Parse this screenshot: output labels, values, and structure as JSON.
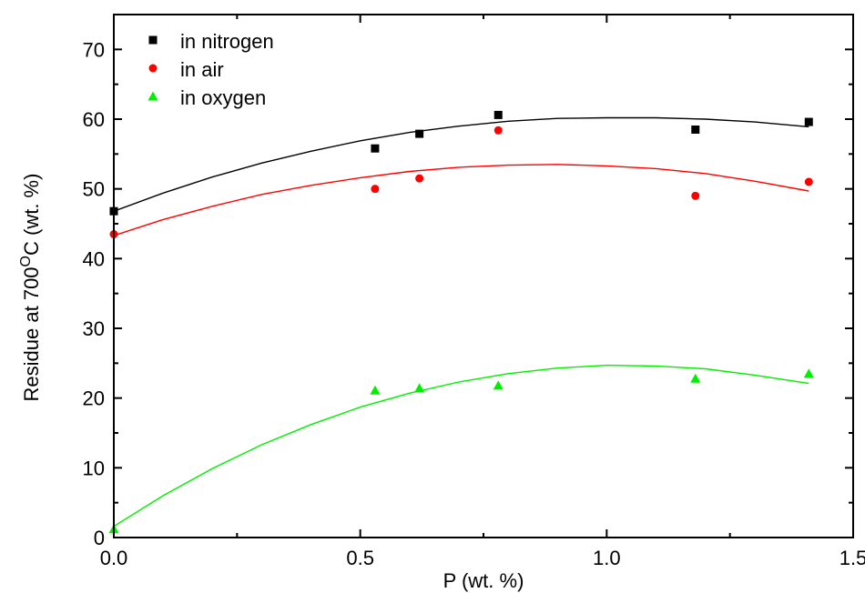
{
  "chart_data": {
    "type": "scatter",
    "xlabel": "P (wt. %)",
    "ylabel": {
      "prefix": "Residue at 700",
      "superscript": "O",
      "suffix": "C (wt. %)"
    },
    "xlim": [
      0.0,
      1.5
    ],
    "ylim": [
      0,
      75
    ],
    "x_ticks": [
      0.0,
      0.5,
      1.0,
      1.5
    ],
    "x_tick_labels": [
      "0.0",
      "0.5",
      "1.0",
      "1.5"
    ],
    "y_ticks": [
      0,
      10,
      20,
      30,
      40,
      50,
      60,
      70
    ],
    "y_tick_labels": [
      "0",
      "10",
      "20",
      "30",
      "40",
      "50",
      "60",
      "70"
    ],
    "legend_position": "top-left",
    "grid": false,
    "series": [
      {
        "name": "in nitrogen",
        "marker": "square",
        "color": "#000000",
        "x": [
          0.0,
          0.53,
          0.62,
          0.78,
          1.18,
          1.41
        ],
        "y": [
          46.8,
          55.8,
          57.9,
          60.6,
          58.5,
          59.6
        ],
        "fit_x": [
          0.0,
          0.1,
          0.2,
          0.3,
          0.4,
          0.5,
          0.6,
          0.7,
          0.8,
          0.9,
          1.0,
          1.1,
          1.2,
          1.3,
          1.41
        ],
        "fit_y": [
          46.8,
          49.4,
          51.7,
          53.7,
          55.4,
          56.9,
          58.1,
          59.0,
          59.7,
          60.1,
          60.2,
          60.2,
          60.0,
          59.6,
          58.9
        ]
      },
      {
        "name": "in air",
        "marker": "circle",
        "color": "#ff0000",
        "x": [
          0.0,
          0.53,
          0.62,
          0.78,
          1.18,
          1.41
        ],
        "y": [
          43.5,
          50.0,
          51.5,
          58.4,
          49.0,
          51.0
        ],
        "fit_x": [
          0.0,
          0.1,
          0.2,
          0.3,
          0.4,
          0.5,
          0.6,
          0.7,
          0.8,
          0.9,
          1.0,
          1.1,
          1.2,
          1.3,
          1.41
        ],
        "fit_y": [
          43.3,
          45.6,
          47.5,
          49.2,
          50.5,
          51.6,
          52.5,
          53.1,
          53.4,
          53.5,
          53.3,
          52.9,
          52.2,
          51.1,
          49.7
        ]
      },
      {
        "name": "in oxygen",
        "marker": "triangle",
        "color": "#00ee00",
        "x": [
          0.0,
          0.53,
          0.62,
          0.78,
          1.18,
          1.41
        ],
        "y": [
          1.2,
          21.1,
          21.4,
          21.8,
          22.8,
          23.5
        ],
        "fit_x": [
          0.0,
          0.1,
          0.2,
          0.3,
          0.4,
          0.5,
          0.6,
          0.7,
          0.8,
          0.9,
          1.0,
          1.1,
          1.2,
          1.3,
          1.41
        ],
        "fit_y": [
          1.6,
          6.0,
          9.9,
          13.3,
          16.2,
          18.7,
          20.7,
          22.3,
          23.5,
          24.3,
          24.7,
          24.6,
          24.2,
          23.3,
          22.1
        ]
      }
    ]
  }
}
